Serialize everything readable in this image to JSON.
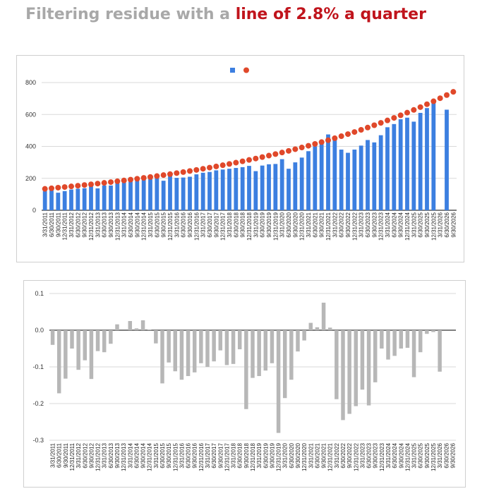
{
  "header": {
    "title_prefix": "Filtering residue with a ",
    "title_highlight": "line of 2.8% a quarter",
    "prefix_color": "#a8a8a8",
    "highlight_color": "#c0141c"
  },
  "chart_data": [
    {
      "type": "bar",
      "title": "",
      "legend_position": "top-center",
      "grid": true,
      "ylim": [
        0,
        800
      ],
      "yticks": [
        0,
        200,
        400,
        600,
        800
      ],
      "categories": [
        "3/31/2011",
        "6/30/2011",
        "9/30/2011",
        "12/31/2011",
        "3/31/2012",
        "6/30/2012",
        "9/30/2012",
        "12/31/2012",
        "3/31/2013",
        "6/30/2013",
        "9/30/2013",
        "12/31/2013",
        "3/31/2014",
        "6/30/2014",
        "9/30/2014",
        "12/31/2014",
        "3/31/2015",
        "6/30/2015",
        "9/30/2015",
        "12/31/2015",
        "3/31/2016",
        "6/30/2016",
        "9/30/2016",
        "12/31/2016",
        "3/31/2017",
        "6/30/2017",
        "9/30/2017",
        "12/31/2017",
        "3/31/2018",
        "6/30/2018",
        "9/30/2018",
        "12/31/2018",
        "3/31/2019",
        "6/30/2019",
        "9/30/2019",
        "12/31/2019",
        "3/31/2020",
        "6/30/2020",
        "9/30/2020",
        "12/31/2020",
        "3/31/2021",
        "6/30/2021",
        "9/30/2021",
        "12/31/2021",
        "3/31/2022",
        "6/30/2022",
        "9/30/2022",
        "12/31/2022",
        "3/31/2023",
        "6/30/2023",
        "9/30/2023",
        "12/31/2023",
        "3/31/2024",
        "6/30/2024",
        "9/30/2024",
        "12/31/2024",
        "3/31/2025",
        "6/30/2025",
        "9/30/2025",
        "12/31/2025",
        "3/31/2026",
        "6/30/2026",
        "9/30/2026"
      ],
      "series": [
        {
          "kind": "bar",
          "color": "#3c7fe0",
          "values": [
            120,
            132,
            110,
            120,
            130,
            135,
            138,
            150,
            137,
            155,
            155,
            170,
            173,
            180,
            195,
            190,
            198,
            205,
            185,
            222,
            203,
            205,
            210,
            225,
            235,
            240,
            250,
            255,
            260,
            265,
            270,
            278,
            245,
            280,
            288,
            290,
            320,
            260,
            300,
            330,
            370,
            400,
            415,
            475,
            440,
            380,
            360,
            380,
            405,
            440,
            425,
            470,
            520,
            540,
            570,
            580,
            555,
            610,
            640,
            680,
            0,
            630,
            0
          ]
        },
        {
          "kind": "dot",
          "color": "#e0482a",
          "values": [
            134.0,
            137.8,
            141.6,
            145.5,
            149.6,
            153.8,
            158.1,
            162.5,
            167.1,
            171.7,
            176.5,
            181.5,
            186.6,
            191.8,
            197.2,
            202.7,
            208.3,
            214.2,
            220.2,
            226.3,
            232.7,
            239.2,
            245.9,
            252.7,
            259.8,
            267.1,
            274.5,
            282.2,
            290.1,
            298.2,
            306.6,
            315.2,
            324.0,
            333.1,
            342.4,
            352.0,
            361.8,
            371.9,
            382.4,
            393.1,
            404.1,
            415.4,
            427.0,
            438.9,
            451.2,
            463.9,
            476.9,
            490.2,
            503.9,
            518.1,
            532.6,
            547.5,
            562.8,
            578.6,
            594.8,
            611.4,
            628.5,
            646.1,
            664.2,
            682.8,
            701.9,
            721.6,
            741.8
          ]
        }
      ]
    },
    {
      "type": "bar",
      "title": "",
      "grid": true,
      "ylim": [
        -0.3,
        0.1
      ],
      "yticks": [
        -0.3,
        -0.2,
        -0.1,
        0.0,
        0.1
      ],
      "ytick_labels": [
        "-0.3",
        "-0.2",
        "-0.1",
        "0.0",
        "0.1"
      ],
      "categories": [
        "3/31/2011",
        "6/30/2011",
        "9/30/2011",
        "12/31/2011",
        "3/31/2012",
        "6/30/2012",
        "9/30/2012",
        "12/31/2012",
        "3/31/2013",
        "6/30/2013",
        "9/30/2013",
        "12/31/2013",
        "3/31/2014",
        "6/30/2014",
        "9/30/2014",
        "12/31/2014",
        "3/31/2015",
        "6/30/2015",
        "9/30/2015",
        "12/31/2015",
        "3/31/2016",
        "6/30/2016",
        "9/30/2016",
        "12/31/2016",
        "3/31/2017",
        "6/30/2017",
        "9/30/2017",
        "12/31/2017",
        "3/31/2018",
        "6/30/2018",
        "9/30/2018",
        "12/31/2018",
        "3/31/2019",
        "6/30/2019",
        "9/30/2019",
        "12/31/2019",
        "3/31/2020",
        "6/30/2020",
        "9/30/2020",
        "12/31/2020",
        "3/31/2021",
        "6/30/2021",
        "9/30/2021",
        "12/31/2021",
        "3/31/2022",
        "6/30/2022",
        "9/30/2022",
        "12/31/2022",
        "3/31/2023",
        "6/30/2023",
        "9/30/2023",
        "12/31/2023",
        "3/31/2024",
        "6/30/2024",
        "9/30/2024",
        "12/31/2024",
        "3/31/2025",
        "6/30/2025",
        "9/30/2025",
        "12/31/2025",
        "3/31/2026",
        "6/30/2026",
        "9/30/2026"
      ],
      "series": [
        {
          "kind": "bar",
          "color": "#b7b7b7",
          "values": [
            -0.04,
            -0.172,
            -0.132,
            -0.05,
            -0.108,
            -0.082,
            -0.133,
            -0.057,
            -0.06,
            -0.037,
            0.016,
            0.0,
            0.025,
            0.005,
            0.027,
            0.002,
            -0.036,
            -0.145,
            -0.088,
            -0.112,
            -0.135,
            -0.125,
            -0.115,
            -0.09,
            -0.1,
            -0.085,
            -0.055,
            -0.095,
            -0.092,
            -0.052,
            -0.215,
            -0.13,
            -0.125,
            -0.11,
            -0.09,
            -0.28,
            -0.185,
            -0.135,
            -0.058,
            -0.028,
            0.02,
            0.008,
            0.075,
            0.007,
            -0.188,
            -0.245,
            -0.228,
            -0.207,
            -0.162,
            -0.205,
            -0.142,
            -0.05,
            -0.08,
            -0.07,
            -0.05,
            -0.048,
            -0.128,
            -0.06,
            -0.01,
            -0.005,
            -0.113,
            0.0,
            0.0
          ]
        }
      ]
    }
  ]
}
